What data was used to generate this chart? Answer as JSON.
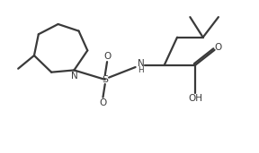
{
  "bg_color": "#ffffff",
  "line_color": "#3a3a3a",
  "text_color": "#3a3a3a",
  "line_width": 1.6,
  "font_size": 7.5,
  "fig_width": 2.88,
  "fig_height": 1.71,
  "dpi": 100,
  "xlim": [
    0,
    10
  ],
  "ylim": [
    0,
    6
  ]
}
